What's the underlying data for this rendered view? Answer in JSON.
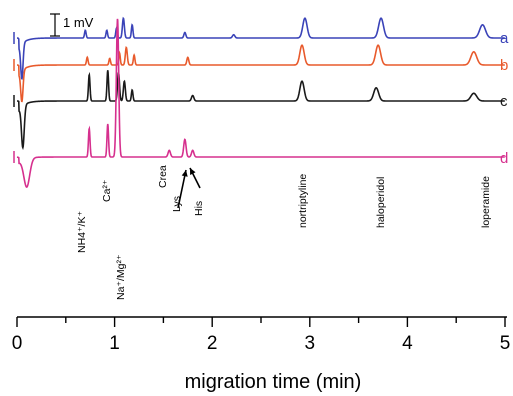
{
  "chart_data": {
    "type": "line",
    "xlabel": "migration time (min)",
    "xlim": [
      0,
      5
    ],
    "xticks": [
      "0",
      "1",
      "2",
      "3",
      "4",
      "5"
    ],
    "scale_bar": "1 mV",
    "series": [
      {
        "name": "a",
        "color": "#3a43b8",
        "baseline": 0.0,
        "peaks": [
          {
            "t": 0.05,
            "h": -1.6,
            "w": 0.012
          },
          {
            "t": 0.7,
            "h": 0.35,
            "w": 0.008
          },
          {
            "t": 0.92,
            "h": 0.35,
            "w": 0.008
          },
          {
            "t": 1.02,
            "h": 0.45,
            "w": 0.008
          },
          {
            "t": 1.09,
            "h": 0.9,
            "w": 0.01
          },
          {
            "t": 1.18,
            "h": 0.6,
            "w": 0.008
          },
          {
            "t": 1.72,
            "h": 0.25,
            "w": 0.01
          },
          {
            "t": 2.22,
            "h": 0.15,
            "w": 0.012
          },
          {
            "t": 2.95,
            "h": 0.9,
            "w": 0.022
          },
          {
            "t": 3.73,
            "h": 0.9,
            "w": 0.025
          },
          {
            "t": 4.77,
            "h": 0.6,
            "w": 0.03
          }
        ]
      },
      {
        "name": "b",
        "color": "#e85a2c",
        "baseline": 0.0,
        "peaks": [
          {
            "t": 0.05,
            "h": -1.4,
            "w": 0.012
          },
          {
            "t": 0.72,
            "h": 0.35,
            "w": 0.008
          },
          {
            "t": 0.95,
            "h": 0.3,
            "w": 0.008
          },
          {
            "t": 1.05,
            "h": 0.55,
            "w": 0.008
          },
          {
            "t": 1.12,
            "h": 0.8,
            "w": 0.01
          },
          {
            "t": 1.2,
            "h": 0.45,
            "w": 0.008
          },
          {
            "t": 1.75,
            "h": 0.35,
            "w": 0.01
          },
          {
            "t": 2.92,
            "h": 0.9,
            "w": 0.022
          },
          {
            "t": 3.7,
            "h": 0.9,
            "w": 0.025
          },
          {
            "t": 4.68,
            "h": 0.6,
            "w": 0.03
          }
        ]
      },
      {
        "name": "c",
        "color": "#1a1a1a",
        "baseline": 0.0,
        "peaks": [
          {
            "t": 0.06,
            "h": -1.9,
            "w": 0.014
          },
          {
            "t": 0.74,
            "h": 1.2,
            "w": 0.008
          },
          {
            "t": 0.93,
            "h": 1.4,
            "w": 0.008
          },
          {
            "t": 1.04,
            "h": 1.3,
            "w": 0.01
          },
          {
            "t": 1.1,
            "h": 0.9,
            "w": 0.01
          },
          {
            "t": 1.18,
            "h": 0.5,
            "w": 0.008
          },
          {
            "t": 1.8,
            "h": 0.25,
            "w": 0.012
          },
          {
            "t": 2.92,
            "h": 0.9,
            "w": 0.022
          },
          {
            "t": 3.68,
            "h": 0.6,
            "w": 0.025
          },
          {
            "t": 4.68,
            "h": 0.35,
            "w": 0.03
          }
        ]
      },
      {
        "name": "d",
        "color": "#d6308e",
        "baseline": 0.0,
        "peaks": [
          {
            "t": 0.1,
            "h": -1.3,
            "w": 0.03
          },
          {
            "t": 0.74,
            "h": 1.3,
            "w": 0.008
          },
          {
            "t": 0.93,
            "h": 1.5,
            "w": 0.008
          },
          {
            "t": 1.03,
            "h": 6.3,
            "w": 0.012
          },
          {
            "t": 1.56,
            "h": 0.3,
            "w": 0.012
          },
          {
            "t": 1.72,
            "h": 0.8,
            "w": 0.012
          },
          {
            "t": 1.8,
            "h": 0.3,
            "w": 0.012
          }
        ]
      }
    ],
    "annotations": [
      {
        "text": "NH4⁺/K⁺"
      },
      {
        "text": "Ca²⁺"
      },
      {
        "text": "Na⁺/Mg²⁺"
      },
      {
        "text": "Crea"
      },
      {
        "text": "Lys"
      },
      {
        "text": "His"
      },
      {
        "text": "nortriptyline"
      },
      {
        "text": "haloperidol"
      },
      {
        "text": "loperamide"
      }
    ]
  }
}
